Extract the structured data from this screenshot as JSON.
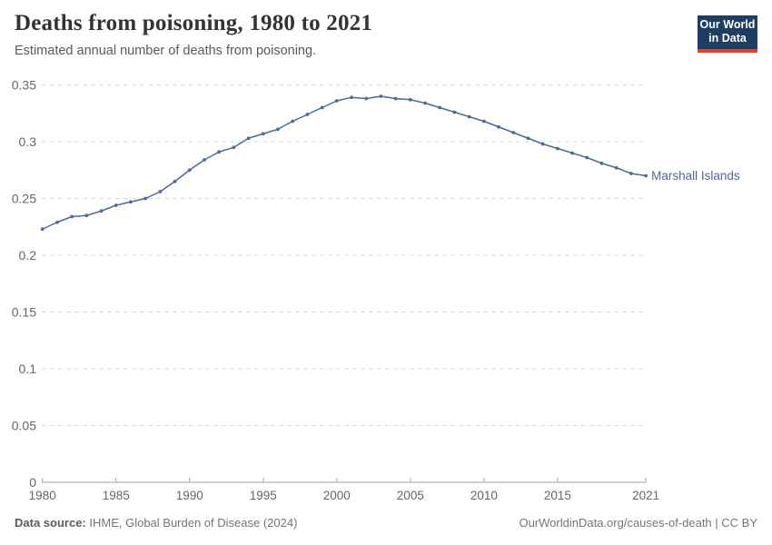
{
  "header": {
    "title": "Deaths from poisoning, 1980 to 2021",
    "subtitle": "Estimated annual number of deaths from poisoning."
  },
  "logo": {
    "line1": "Our World",
    "line2": "in Data",
    "bg_color": "#1d3d63",
    "bar_color": "#e63e36"
  },
  "chart_data": {
    "type": "line",
    "title": "Deaths from poisoning, 1980 to 2021",
    "xlabel": "",
    "ylabel": "",
    "ylim": [
      0,
      0.35
    ],
    "grid": "horizontal-dashed",
    "legend_position": "end-of-line-label",
    "x": [
      1980,
      1981,
      1982,
      1983,
      1984,
      1985,
      1986,
      1987,
      1988,
      1989,
      1990,
      1991,
      1992,
      1993,
      1994,
      1995,
      1996,
      1997,
      1998,
      1999,
      2000,
      2001,
      2002,
      2003,
      2004,
      2005,
      2006,
      2007,
      2008,
      2009,
      2010,
      2011,
      2012,
      2013,
      2014,
      2015,
      2016,
      2017,
      2018,
      2019,
      2020,
      2021
    ],
    "series": [
      {
        "name": "Marshall Islands",
        "color": "#4C6A9C",
        "values": [
          0.223,
          0.229,
          0.234,
          0.235,
          0.239,
          0.244,
          0.247,
          0.25,
          0.256,
          0.265,
          0.275,
          0.284,
          0.291,
          0.295,
          0.303,
          0.307,
          0.311,
          0.318,
          0.324,
          0.33,
          0.336,
          0.339,
          0.338,
          0.34,
          0.338,
          0.337,
          0.334,
          0.33,
          0.326,
          0.322,
          0.318,
          0.313,
          0.308,
          0.303,
          0.298,
          0.294,
          0.29,
          0.286,
          0.281,
          0.277,
          0.272,
          0.27
        ]
      }
    ],
    "yticks": [
      {
        "v": 0,
        "label": "0"
      },
      {
        "v": 0.05,
        "label": "0.05"
      },
      {
        "v": 0.1,
        "label": "0.1"
      },
      {
        "v": 0.15,
        "label": "0.15"
      },
      {
        "v": 0.2,
        "label": "0.2"
      },
      {
        "v": 0.25,
        "label": "0.25"
      },
      {
        "v": 0.3,
        "label": "0.3"
      },
      {
        "v": 0.35,
        "label": "0.35"
      }
    ],
    "xticks": [
      {
        "v": 1980,
        "label": "1980"
      },
      {
        "v": 1985,
        "label": "1985"
      },
      {
        "v": 1990,
        "label": "1990"
      },
      {
        "v": 1995,
        "label": "1995"
      },
      {
        "v": 2000,
        "label": "2000"
      },
      {
        "v": 2005,
        "label": "2005"
      },
      {
        "v": 2010,
        "label": "2010"
      },
      {
        "v": 2015,
        "label": "2015"
      },
      {
        "v": 2021,
        "label": "2021"
      }
    ],
    "colors": {
      "gridline": "#dadada",
      "axis": "#a3a3a3",
      "tick_label": "#666666"
    }
  },
  "footer": {
    "source_label": "Data source:",
    "source_value": " IHME, Global Burden of Disease (2024)",
    "right": "OurWorldinData.org/causes-of-death | CC BY"
  }
}
